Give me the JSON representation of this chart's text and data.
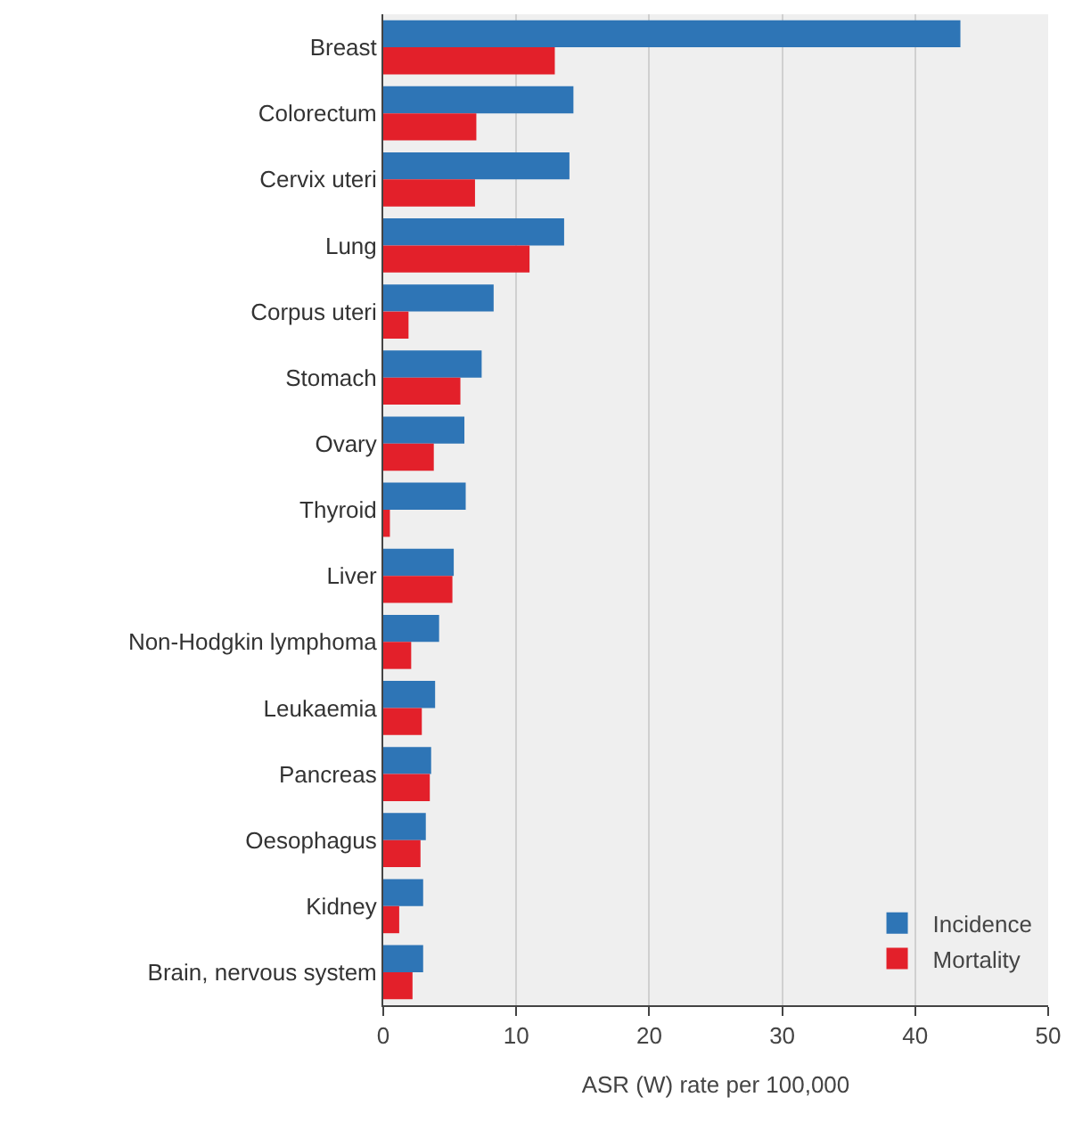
{
  "chart_data": {
    "type": "bar",
    "orientation": "horizontal",
    "xlabel": "ASR (W) rate per 100,000",
    "categories": [
      "Breast",
      "Colorectum",
      "Cervix uteri",
      "Lung",
      "Corpus uteri",
      "Stomach",
      "Ovary",
      "Thyroid",
      "Liver",
      "Non-Hodgkin lymphoma",
      "Leukaemia",
      "Pancreas",
      "Oesophagus",
      "Kidney",
      "Brain, nervous system"
    ],
    "series": [
      {
        "name": "Incidence",
        "color": "#2e75b6",
        "values": [
          43.4,
          14.3,
          14.0,
          13.6,
          8.3,
          7.4,
          6.1,
          6.2,
          5.3,
          4.2,
          3.9,
          3.6,
          3.2,
          3.0,
          3.0
        ]
      },
      {
        "name": "Mortality",
        "color": "#e3202a",
        "values": [
          12.9,
          7.0,
          6.9,
          11.0,
          1.9,
          5.8,
          3.8,
          0.5,
          5.2,
          2.1,
          2.9,
          3.5,
          2.8,
          1.2,
          2.2
        ]
      }
    ],
    "xlim": [
      0,
      50
    ],
    "xticks": [
      0,
      10,
      20,
      30,
      40,
      50
    ],
    "grid": "x",
    "legend": "bottom right"
  }
}
